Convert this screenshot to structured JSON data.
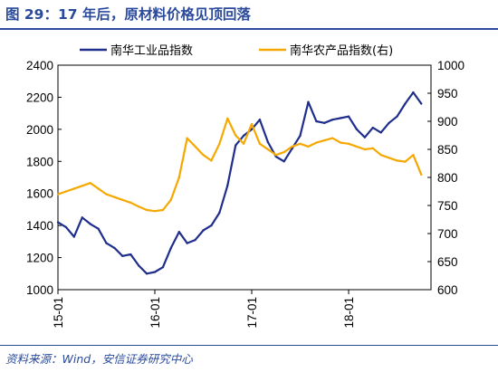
{
  "figure": {
    "title": "图 29：17 年后，原材料价格见顶回落",
    "source": "资料来源：Wind，安信证券研究中心"
  },
  "colors": {
    "industrial": "#1f2e8c",
    "agricultural": "#f5a800",
    "accent": "#2b4a9b"
  },
  "chart_data": {
    "type": "line",
    "x_ticks": [
      "15-01",
      "16-01",
      "17-01",
      "18-01"
    ],
    "y_left": {
      "ticks": [
        1000,
        1200,
        1400,
        1600,
        1800,
        2000,
        2200,
        2400
      ],
      "ylim": [
        1000,
        2400
      ]
    },
    "y_right": {
      "ticks": [
        600,
        650,
        700,
        750,
        800,
        850,
        900,
        950,
        1000
      ],
      "ylim": [
        600,
        1000
      ]
    },
    "legend": [
      "南华工业品指数",
      "南华农产品指数(右)"
    ],
    "series": [
      {
        "name": "南华工业品指数",
        "axis": "left",
        "x": [
          "2015-01",
          "2015-02",
          "2015-03",
          "2015-04",
          "2015-05",
          "2015-06",
          "2015-07",
          "2015-08",
          "2015-09",
          "2015-10",
          "2015-11",
          "2015-12",
          "2016-01",
          "2016-02",
          "2016-03",
          "2016-04",
          "2016-05",
          "2016-06",
          "2016-07",
          "2016-08",
          "2016-09",
          "2016-10",
          "2016-11",
          "2016-12",
          "2017-01",
          "2017-02",
          "2017-03",
          "2017-04",
          "2017-05",
          "2017-06",
          "2017-07",
          "2017-08",
          "2017-09",
          "2017-10",
          "2017-11",
          "2017-12",
          "2018-01",
          "2018-02",
          "2018-03",
          "2018-04",
          "2018-05",
          "2018-06",
          "2018-07",
          "2018-08",
          "2018-09",
          "2018-10"
        ],
        "values": [
          1420,
          1390,
          1330,
          1450,
          1410,
          1380,
          1290,
          1260,
          1210,
          1220,
          1150,
          1100,
          1110,
          1140,
          1260,
          1360,
          1290,
          1310,
          1370,
          1400,
          1480,
          1650,
          1900,
          1960,
          2000,
          2060,
          1920,
          1830,
          1800,
          1880,
          1960,
          2170,
          2050,
          2040,
          2060,
          2070,
          2080,
          2000,
          1950,
          2010,
          1980,
          2040,
          2080,
          2160,
          2230,
          2160
        ]
      },
      {
        "name": "南华农产品指数(右)",
        "axis": "right",
        "x": [
          "2015-01",
          "2015-02",
          "2015-03",
          "2015-04",
          "2015-05",
          "2015-06",
          "2015-07",
          "2015-08",
          "2015-09",
          "2015-10",
          "2015-11",
          "2015-12",
          "2016-01",
          "2016-02",
          "2016-03",
          "2016-04",
          "2016-05",
          "2016-06",
          "2016-07",
          "2016-08",
          "2016-09",
          "2016-10",
          "2016-11",
          "2016-12",
          "2017-01",
          "2017-02",
          "2017-03",
          "2017-04",
          "2017-05",
          "2017-06",
          "2017-07",
          "2017-08",
          "2017-09",
          "2017-10",
          "2017-11",
          "2017-12",
          "2018-01",
          "2018-02",
          "2018-03",
          "2018-04",
          "2018-05",
          "2018-06",
          "2018-07",
          "2018-08",
          "2018-09",
          "2018-10"
        ],
        "values": [
          770,
          775,
          780,
          785,
          790,
          780,
          770,
          765,
          760,
          755,
          748,
          742,
          740,
          742,
          760,
          800,
          870,
          855,
          840,
          830,
          860,
          905,
          875,
          860,
          895,
          860,
          850,
          840,
          845,
          855,
          860,
          855,
          862,
          866,
          870,
          862,
          860,
          855,
          850,
          852,
          840,
          835,
          830,
          828,
          840,
          805
        ]
      }
    ]
  }
}
